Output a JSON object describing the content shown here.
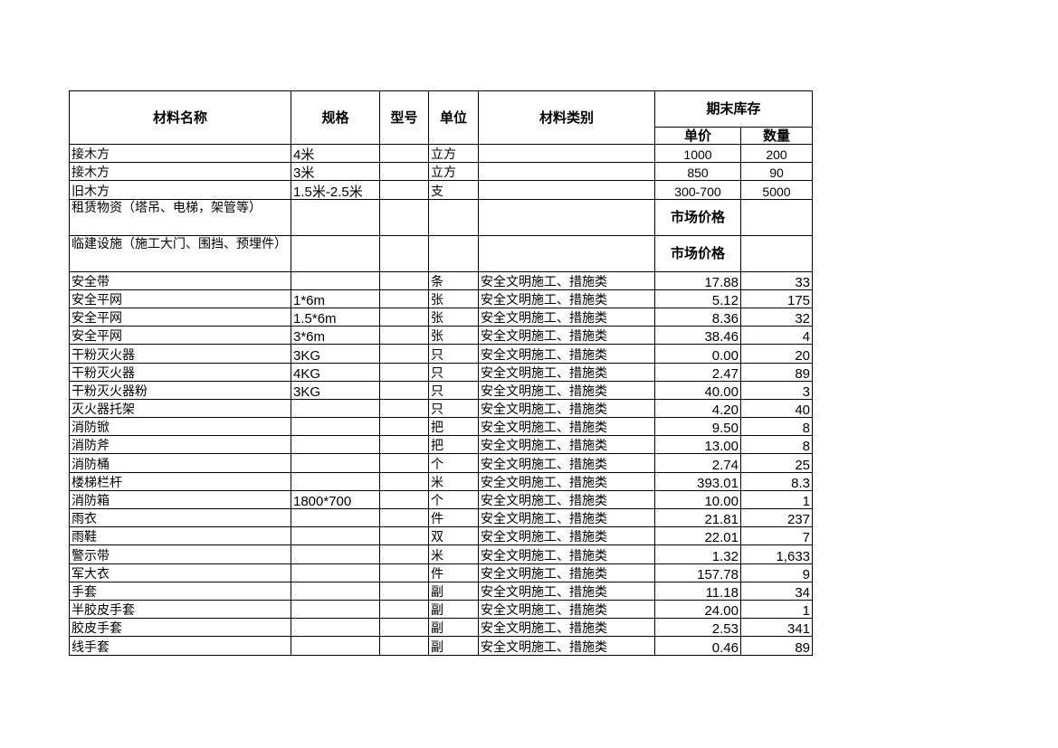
{
  "headers": {
    "name": "材料名称",
    "spec": "规格",
    "model": "型号",
    "unit": "单位",
    "category": "材料类别",
    "ending_stock": "期末库存",
    "unit_price": "单价",
    "quantity": "数量"
  },
  "rows": [
    {
      "name": "接木方",
      "spec": "4米",
      "model": "",
      "unit": "立方",
      "category": "",
      "price": "1000",
      "qty": "200",
      "style": "center"
    },
    {
      "name": "接木方",
      "spec": "3米",
      "model": "",
      "unit": "立方",
      "category": "",
      "price": "850",
      "qty": "90",
      "style": "center"
    },
    {
      "name": "旧木方",
      "spec": "1.5米-2.5米",
      "model": "",
      "unit": "支",
      "category": "",
      "price": "300-700",
      "qty": "5000",
      "style": "center"
    },
    {
      "name": "租赁物资（塔吊、电梯，架管等）",
      "spec": "",
      "model": "",
      "unit": "",
      "category": "",
      "price": "市场价格",
      "qty": "",
      "style": "tall"
    },
    {
      "name": "临建设施（施工大门、围挡、预埋件）",
      "spec": "",
      "model": "",
      "unit": "",
      "category": "",
      "price": "市场价格",
      "qty": "",
      "style": "tall"
    },
    {
      "name": "安全带",
      "spec": "",
      "model": "",
      "unit": "条",
      "category": "安全文明施工、措施类",
      "price": "17.88",
      "qty": "33"
    },
    {
      "name": "安全平网",
      "spec": "1*6m",
      "model": "",
      "unit": "张",
      "category": "安全文明施工、措施类",
      "price": "5.12",
      "qty": "175"
    },
    {
      "name": "安全平网",
      "spec": "1.5*6m",
      "model": "",
      "unit": "张",
      "category": "安全文明施工、措施类",
      "price": "8.36",
      "qty": "32"
    },
    {
      "name": "安全平网",
      "spec": "3*6m",
      "model": "",
      "unit": "张",
      "category": "安全文明施工、措施类",
      "price": "38.46",
      "qty": "4"
    },
    {
      "name": "干粉灭火器",
      "spec": "3KG",
      "model": "",
      "unit": "只",
      "category": "安全文明施工、措施类",
      "price": "0.00",
      "qty": "20"
    },
    {
      "name": "干粉灭火器",
      "spec": "4KG",
      "model": "",
      "unit": "只",
      "category": "安全文明施工、措施类",
      "price": "2.47",
      "qty": "89"
    },
    {
      "name": "干粉灭火器粉",
      "spec": "3KG",
      "model": "",
      "unit": "只",
      "category": "安全文明施工、措施类",
      "price": "40.00",
      "qty": "3"
    },
    {
      "name": "灭火器托架",
      "spec": "",
      "model": "",
      "unit": "只",
      "category": "安全文明施工、措施类",
      "price": "4.20",
      "qty": "40"
    },
    {
      "name": "消防锨",
      "spec": "",
      "model": "",
      "unit": "把",
      "category": "安全文明施工、措施类",
      "price": "9.50",
      "qty": "8"
    },
    {
      "name": "消防斧",
      "spec": "",
      "model": "",
      "unit": "把",
      "category": "安全文明施工、措施类",
      "price": "13.00",
      "qty": "8"
    },
    {
      "name": "消防桶",
      "spec": "",
      "model": "",
      "unit": "个",
      "category": "安全文明施工、措施类",
      "price": "2.74",
      "qty": "25"
    },
    {
      "name": "楼梯栏杆",
      "spec": "",
      "model": "",
      "unit": "米",
      "category": "安全文明施工、措施类",
      "price": "393.01",
      "qty": "8.3"
    },
    {
      "name": "消防箱",
      "spec": "1800*700",
      "model": "",
      "unit": "个",
      "category": "安全文明施工、措施类",
      "price": "10.00",
      "qty": "1"
    },
    {
      "name": "雨衣",
      "spec": "",
      "model": "",
      "unit": "件",
      "category": "安全文明施工、措施类",
      "price": "21.81",
      "qty": "237"
    },
    {
      "name": "雨鞋",
      "spec": "",
      "model": "",
      "unit": "双",
      "category": "安全文明施工、措施类",
      "price": "22.01",
      "qty": "7"
    },
    {
      "name": "警示带",
      "spec": "",
      "model": "",
      "unit": "米",
      "category": "安全文明施工、措施类",
      "price": "1.32",
      "qty": "1,633"
    },
    {
      "name": "军大衣",
      "spec": "",
      "model": "",
      "unit": "件",
      "category": "安全文明施工、措施类",
      "price": "157.78",
      "qty": "9"
    },
    {
      "name": "手套",
      "spec": "",
      "model": "",
      "unit": "副",
      "category": "安全文明施工、措施类",
      "price": "11.18",
      "qty": "34"
    },
    {
      "name": "半胶皮手套",
      "spec": "",
      "model": "",
      "unit": "副",
      "category": "安全文明施工、措施类",
      "price": "24.00",
      "qty": "1"
    },
    {
      "name": "胶皮手套",
      "spec": "",
      "model": "",
      "unit": "副",
      "category": "安全文明施工、措施类",
      "price": "2.53",
      "qty": "341"
    },
    {
      "name": "线手套",
      "spec": "",
      "model": "",
      "unit": "副",
      "category": "安全文明施工、措施类",
      "price": "0.46",
      "qty": "89"
    }
  ]
}
